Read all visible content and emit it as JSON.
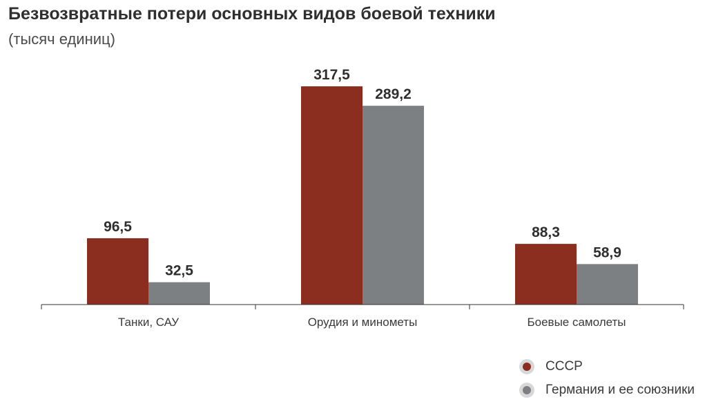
{
  "chart_data": {
    "type": "bar",
    "title": "Безвозвратные потери основных видов боевой техники",
    "subtitle": "(тысяч единиц)",
    "categories": [
      "Танки, САУ",
      "Орудия и минометы",
      "Боевые самолеты"
    ],
    "series": [
      {
        "name": "СССР",
        "color": "#8b2e1f",
        "values": [
          96.5,
          317.5,
          88.3
        ],
        "labels": [
          "96,5",
          "317,5",
          "88,3"
        ]
      },
      {
        "name": "Германия и ее союзники",
        "color": "#7d8083",
        "values": [
          32.5,
          289.2,
          58.9
        ],
        "labels": [
          "32,5",
          "289,2",
          "58,9"
        ]
      }
    ],
    "ylim": [
      0,
      317.5
    ],
    "grid": false,
    "legend_position": "bottom-right"
  }
}
